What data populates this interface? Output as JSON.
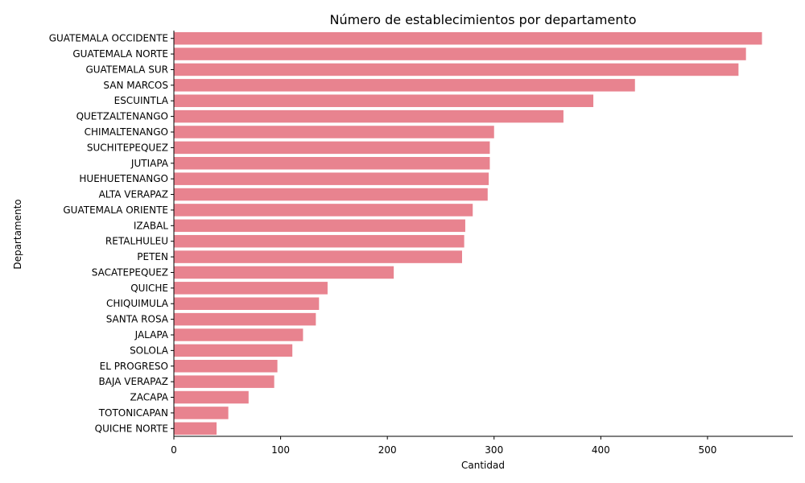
{
  "chart_data": {
    "type": "bar",
    "orientation": "horizontal",
    "title": "Número de establecimientos por departamento",
    "xlabel": "Cantidad",
    "ylabel": "Departamento",
    "xlim": [
      0,
      580
    ],
    "xticks": [
      0,
      100,
      200,
      300,
      400,
      500
    ],
    "grid": false,
    "bar_color": "#e8838f",
    "categories": [
      "GUATEMALA OCCIDENTE",
      "GUATEMALA NORTE",
      "GUATEMALA SUR",
      "SAN MARCOS",
      "ESCUINTLA",
      "QUETZALTENANGO",
      "CHIMALTENANGO",
      "SUCHITEPEQUEZ",
      "JUTIAPA",
      "HUEHUETENANGO",
      "ALTA VERAPAZ",
      "GUATEMALA ORIENTE",
      "IZABAL",
      "RETALHULEU",
      "PETEN",
      "SACATEPEQUEZ",
      "QUICHE",
      "CHIQUIMULA",
      "SANTA ROSA",
      "JALAPA",
      "SOLOLA",
      "EL PROGRESO",
      "BAJA VERAPAZ",
      "ZACAPA",
      "TOTONICAPAN",
      "QUICHE NORTE"
    ],
    "values": [
      551,
      536,
      529,
      432,
      393,
      365,
      300,
      296,
      296,
      295,
      294,
      280,
      273,
      272,
      270,
      206,
      144,
      136,
      133,
      121,
      111,
      97,
      94,
      70,
      51,
      40
    ]
  }
}
